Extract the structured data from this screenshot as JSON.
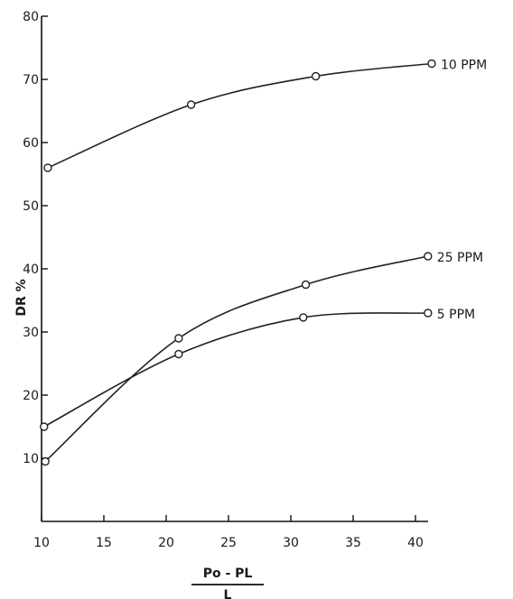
{
  "chart_data": {
    "type": "line",
    "title": "",
    "xlabel": {
      "numerator": "Po - PL",
      "denominator": "L"
    },
    "ylabel": "DR %",
    "xlim": [
      10,
      40
    ],
    "ylim": [
      0,
      80
    ],
    "xticks": [
      10,
      15,
      20,
      25,
      30,
      35,
      40
    ],
    "yticks": [
      10,
      20,
      30,
      40,
      50,
      60,
      70,
      80
    ],
    "grid": false,
    "series": [
      {
        "name": "10 PPM",
        "x": [
          10.5,
          22,
          32,
          41.3
        ],
        "y": [
          56,
          66,
          70.5,
          72.5
        ]
      },
      {
        "name": "25 PPM",
        "x": [
          10.3,
          21,
          31.2,
          41
        ],
        "y": [
          9.5,
          29,
          37.5,
          42
        ]
      },
      {
        "name": "5 PPM",
        "x": [
          10.2,
          21,
          31,
          41
        ],
        "y": [
          15,
          26.5,
          32.3,
          33
        ]
      }
    ]
  }
}
